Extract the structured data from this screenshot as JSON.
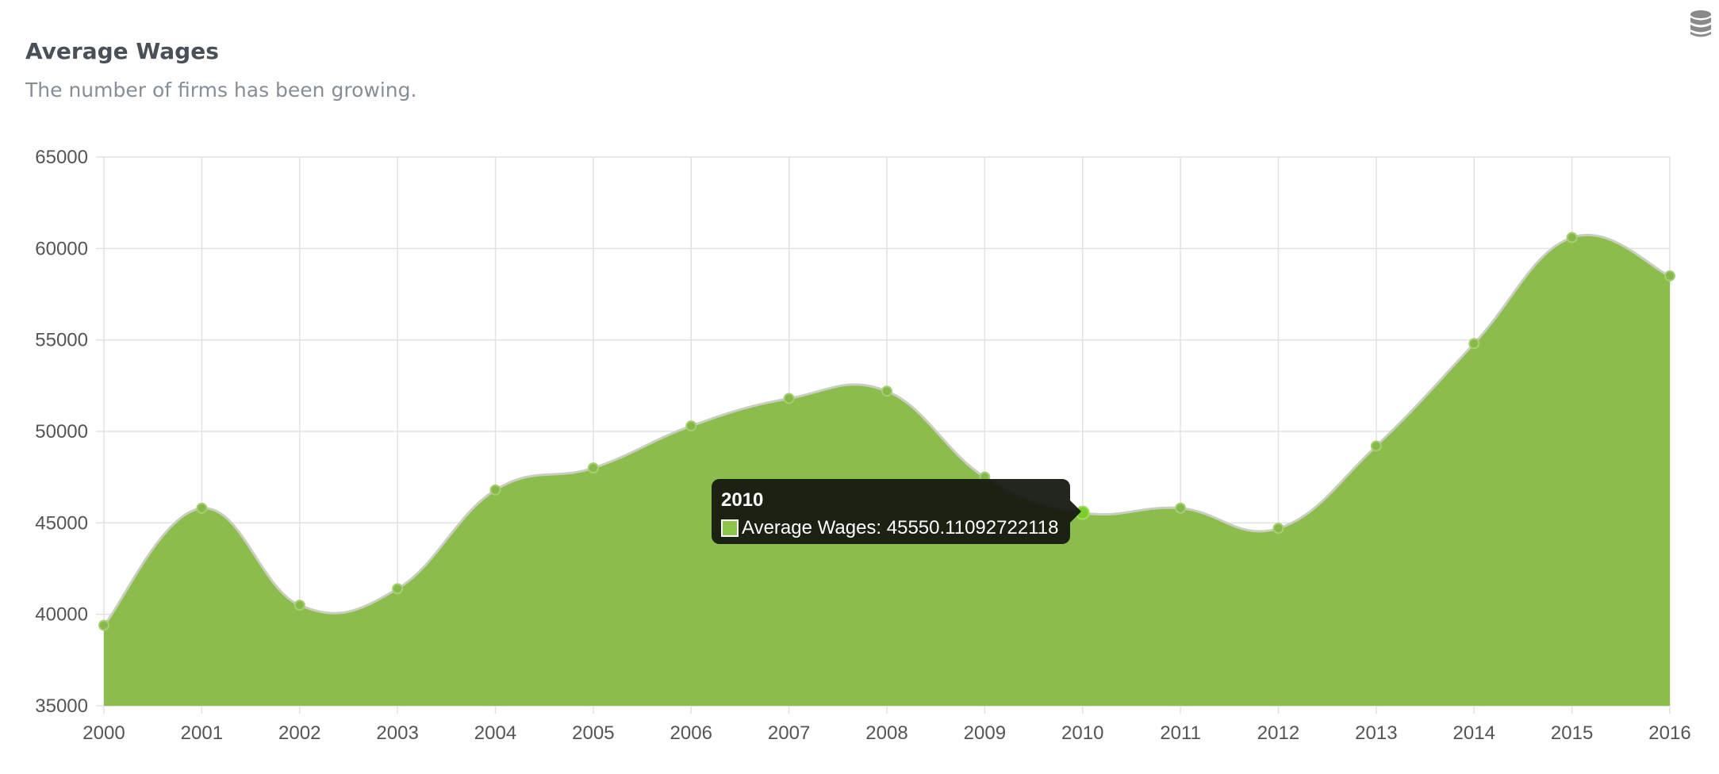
{
  "card": {
    "title": "Average Wages",
    "subtitle": "The number of firms has been growing.",
    "icon": "database-icon"
  },
  "chart_data": {
    "type": "area",
    "x": [
      "2000",
      "2001",
      "2002",
      "2003",
      "2004",
      "2005",
      "2006",
      "2007",
      "2008",
      "2009",
      "2010",
      "2011",
      "2012",
      "2013",
      "2014",
      "2015",
      "2016"
    ],
    "series": [
      {
        "name": "Average Wages",
        "values": [
          39400,
          45800,
          40500,
          41400,
          46800,
          48000,
          50300,
          51800,
          52200,
          47500,
          45550.11092722118,
          45800,
          44700,
          49200,
          54800,
          60600,
          58500
        ]
      }
    ],
    "yticks": [
      "65000",
      "60000",
      "55000",
      "50000",
      "45000",
      "40000",
      "35000"
    ],
    "ylim": [
      35000,
      65000
    ],
    "grid": true,
    "colors": {
      "fill": "#8cbc4c",
      "line": "#c8cfc0",
      "point": "#86b84a",
      "active_point": "#7ccc2c",
      "grid": "#e2e2e2"
    }
  },
  "tooltip": {
    "title": "2010",
    "label": "Average Wages: 45550.11092722118"
  }
}
